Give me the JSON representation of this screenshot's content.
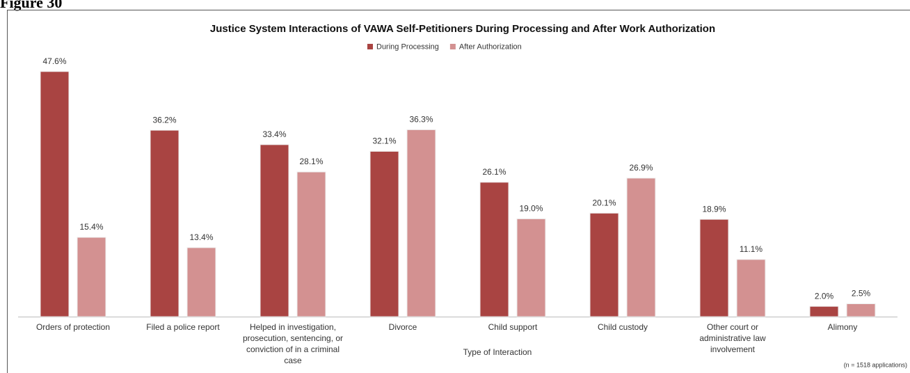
{
  "figure_label": "Figure 30",
  "chart_data": {
    "type": "bar",
    "title": "Justice System Interactions of VAWA Self-Petitioners During Processing and After Work Authorization",
    "x_label": "Type of Interaction",
    "note": "(n = 1518 applications)",
    "categories": [
      "Orders of protection",
      "Filed a police report",
      "Helped in investigation, prosecution, sentencing, or conviction of in a criminal case",
      "Divorce",
      "Child support",
      "Child custody",
      "Other court or administrative law involvement",
      "Alimony"
    ],
    "series": [
      {
        "name": "During Processing",
        "color": "#a94442",
        "values": [
          47.6,
          36.2,
          33.4,
          32.1,
          26.1,
          20.1,
          18.9,
          2.0
        ],
        "value_labels": [
          "47.6%",
          "36.2%",
          "33.4%",
          "32.1%",
          "26.1%",
          "20.1%",
          "18.9%",
          "2.0%"
        ]
      },
      {
        "name": "After Authorization",
        "color": "#d39191",
        "values": [
          15.4,
          13.4,
          28.1,
          36.3,
          19.0,
          26.9,
          11.1,
          2.5
        ],
        "value_labels": [
          "15.4%",
          "13.4%",
          "28.1%",
          "36.3%",
          "19.0%",
          "26.9%",
          "11.1%",
          "2.5%"
        ]
      }
    ],
    "ylim": [
      0,
      50
    ],
    "legend": "top"
  }
}
